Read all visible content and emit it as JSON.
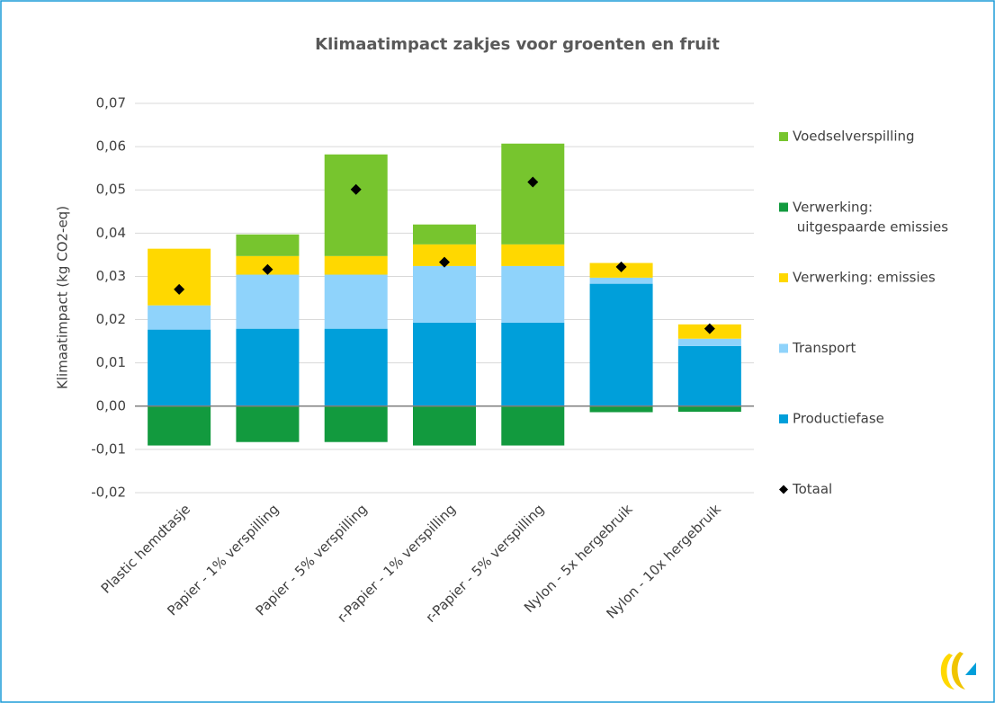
{
  "chart_data": {
    "type": "bar",
    "stacked": true,
    "title": "Klimaatimpact zakjes voor groenten en fruit",
    "y_label": "Klimaatimpact (kg CO2-eq)",
    "categories": [
      "Plastic hemdtasje",
      "Papier - 1% verspilling",
      "Papier - 5% verspilling",
      "r-Papier - 1% verspilling",
      "r-Papier - 5% verspilling",
      "Nylon - 5x hergebruik",
      "Nylon - 10x hergebruik"
    ],
    "series": [
      {
        "name": "Productiefase",
        "color": "#009fda",
        "values": [
          0.0177,
          0.0179,
          0.0179,
          0.0193,
          0.0193,
          0.0283,
          0.0139
        ]
      },
      {
        "name": "Transport",
        "color": "#8fd3fb",
        "values": [
          0.0056,
          0.0125,
          0.0125,
          0.0131,
          0.0131,
          0.0014,
          0.0017
        ]
      },
      {
        "name": "Verwerking: emissies",
        "color": "#ffd800",
        "values": [
          0.0131,
          0.0043,
          0.0043,
          0.005,
          0.005,
          0.0034,
          0.0033
        ]
      },
      {
        "name": "Verwerking: uitgespaarde emissies",
        "color": "#129a3e",
        "values": [
          -0.0091,
          -0.0083,
          -0.0083,
          -0.0091,
          -0.0091,
          -0.0014,
          -0.0013
        ]
      },
      {
        "name": "Voedselverspilling",
        "color": "#77c52e",
        "values": [
          0,
          0.005,
          0.0235,
          0.0046,
          0.0233,
          0,
          0
        ]
      },
      {
        "name": "Totaal",
        "type": "scatter",
        "marker": "diamond",
        "color": "#000000",
        "values": [
          0.027,
          0.0316,
          0.0501,
          0.0333,
          0.0518,
          0.0322,
          0.0179
        ]
      }
    ],
    "ylim": [
      -0.02,
      0.07
    ],
    "yticks": [
      {
        "value": -0.02,
        "label": "-0,02"
      },
      {
        "value": -0.01,
        "label": "-0,01"
      },
      {
        "value": 0,
        "label": "0,00"
      },
      {
        "value": 0.01,
        "label": "0,01"
      },
      {
        "value": 0.02,
        "label": "0,02"
      },
      {
        "value": 0.03,
        "label": "0,03"
      },
      {
        "value": 0.04,
        "label": "0,04"
      },
      {
        "value": 0.05,
        "label": "0,05"
      },
      {
        "value": 0.06,
        "label": "0,06"
      },
      {
        "value": 0.07,
        "label": "0,07"
      }
    ],
    "grid": true,
    "legend": "right"
  }
}
